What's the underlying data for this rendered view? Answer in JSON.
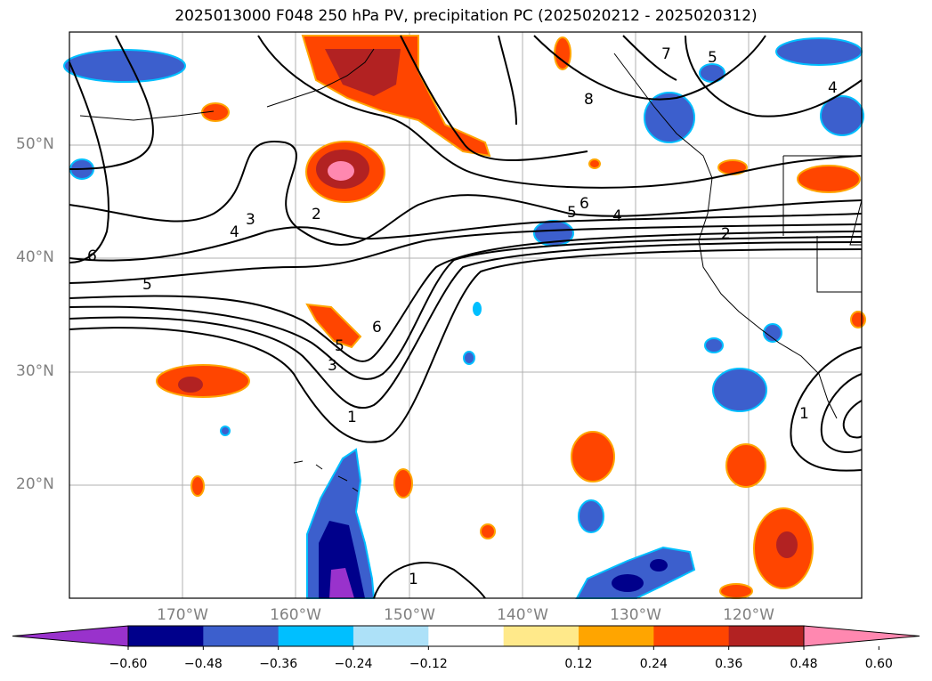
{
  "title": "2025013000 F048 250 hPa PV, precipitation PC (2025020212 - 2025020312)",
  "map": {
    "extent": {
      "lon_min": -180,
      "lon_max": -110,
      "lat_min": 10,
      "lat_max": 60
    },
    "projection": "PlateCarree",
    "grid": true,
    "lat_labels": [
      "50°N",
      "40°N",
      "30°N",
      "20°N"
    ],
    "lon_labels": [
      "170°W",
      "160°W",
      "150°W",
      "140°W",
      "130°W",
      "120°W"
    ]
  },
  "contours": {
    "field": "250 hPa PV",
    "levels_labeled": [
      "1",
      "2",
      "3",
      "4",
      "5",
      "6",
      "7",
      "8"
    ],
    "color": "#000000"
  },
  "precip_colors": {
    "neg_extreme": "#9932CC",
    "neg_060": "#00008B",
    "neg_048": "#3C5FCD",
    "neg_036": "#00BFFF",
    "neg_024": "#ADE1F8",
    "pos_012": "#FFE98A",
    "pos_024": "#FFA500",
    "pos_036": "#FF4500",
    "pos_048": "#B22222",
    "pos_extreme": "#FF88B0"
  },
  "colorbar": {
    "ticks": [
      "−0.60",
      "−0.48",
      "−0.36",
      "−0.24",
      "−0.12",
      "0.12",
      "0.24",
      "0.36",
      "0.48",
      "0.60"
    ],
    "colors": [
      "#9932CC",
      "#00008B",
      "#3C5FCD",
      "#00BFFF",
      "#ADE1F8",
      "#FFFFFF",
      "#FFE98A",
      "#FFA500",
      "#FF4500",
      "#B22222",
      "#FF88B0"
    ],
    "extend": "both"
  }
}
